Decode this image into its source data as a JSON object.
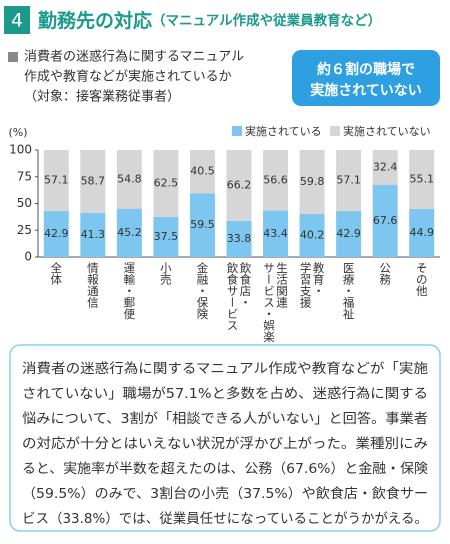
{
  "header": {
    "number": "4",
    "title": "勤務先の対応",
    "subtitle": "（マニュアル作成や従業員教育など）"
  },
  "chart_data": {
    "type": "stacked-bar",
    "title_lines": [
      "消費者の迷惑行為に関するマニュアル",
      "作成や教育などが実施されているか",
      "（対象：接客業務従事者）"
    ],
    "callout_lines": [
      "約６割の職場で",
      "実施されていない"
    ],
    "y_label": "(%)",
    "categories": [
      [
        "全体"
      ],
      [
        "情報通信"
      ],
      [
        "運輸・郵便"
      ],
      [
        "小売"
      ],
      [
        "金融・保険"
      ],
      [
        "飲食店・",
        "飲食サービス"
      ],
      [
        "生活関連",
        "サービス・娯楽"
      ],
      [
        "教育・",
        "学習支援"
      ],
      [
        "医療・福祉"
      ],
      [
        "公務"
      ],
      [
        "その他"
      ]
    ],
    "series": [
      {
        "name": "実施されている",
        "color": "#7cc6f0",
        "values": [
          42.9,
          41.3,
          45.2,
          37.5,
          59.5,
          33.8,
          43.4,
          40.2,
          42.9,
          67.6,
          44.9
        ]
      },
      {
        "name": "実施されていない",
        "color": "#d6d6d6",
        "values": [
          57.1,
          58.7,
          54.8,
          62.5,
          40.5,
          66.2,
          56.6,
          59.8,
          57.1,
          32.4,
          55.1
        ]
      }
    ],
    "ylim": [
      0,
      100
    ],
    "yticks": [
      0,
      25,
      50,
      75,
      100
    ]
  },
  "summary": {
    "lines": [
      "消費者の迷惑行為に関するマニュアル作成や教育などが「実施",
      "されていない」職場が57.1%と多数を占め、迷惑行為に関する",
      "悩みについて、3割が「相談できる人がいない」と回答。事業者",
      "の対応が十分とはいえない状況が浮かび上がった。業種別にみ",
      "ると、実施率が半数を超えたのは、公務（67.6%）と金融・保険",
      "（59.5%）のみで、3割台の小売（37.5%）や飲食店・飲食サー",
      "ビス（33.8%）では、従業員任せになっていることがうかがえる。"
    ]
  }
}
